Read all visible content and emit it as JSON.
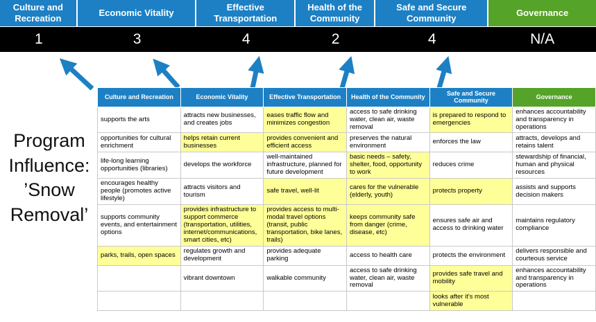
{
  "colors": {
    "blue": "#1d80c4",
    "green": "#55a329",
    "highlight": "#ffff99",
    "score_bar_bg": "#000000",
    "arrow": "#1d80c4"
  },
  "program_label": "Program\nInfluence:\n’Snow\nRemoval’",
  "scoreboard": {
    "categories": [
      {
        "label": "Culture and Recreation",
        "score": "1",
        "color_key": "blue"
      },
      {
        "label": "Economic Vitality",
        "score": "3",
        "color_key": "blue"
      },
      {
        "label": "Effective Transportation",
        "score": "4",
        "color_key": "blue"
      },
      {
        "label": "Health of the Community",
        "score": "2",
        "color_key": "blue"
      },
      {
        "label": "Safe and Secure Community",
        "score": "4",
        "color_key": "blue"
      },
      {
        "label": "Governance",
        "score": "N/A",
        "color_key": "green"
      }
    ]
  },
  "table": {
    "headers": [
      {
        "label": "Culture and Recreation",
        "color_key": "blue"
      },
      {
        "label": "Economic Vitality",
        "color_key": "blue"
      },
      {
        "label": "Effective Transportation",
        "color_key": "blue"
      },
      {
        "label": "Health of the Community",
        "color_key": "blue"
      },
      {
        "label": "Safe and Secure Community",
        "color_key": "blue"
      },
      {
        "label": "Governance",
        "color_key": "green"
      }
    ],
    "rows": [
      [
        {
          "text": "supports the arts",
          "highlight": false
        },
        {
          "text": "attracts new businesses, and creates jobs",
          "highlight": false
        },
        {
          "text": "eases traffic flow and minimizes congestion",
          "highlight": true
        },
        {
          "text": "access to safe drinking water, clean air, waste removal",
          "highlight": false
        },
        {
          "text": "is prepared to respond to emergencies",
          "highlight": true
        },
        {
          "text": "enhances accountability and transparency in operations",
          "highlight": false
        }
      ],
      [
        {
          "text": "opportunities for cultural enrichment",
          "highlight": false
        },
        {
          "text": "helps retain current businesses",
          "highlight": true
        },
        {
          "text": "provides convenient and efficient access",
          "highlight": true
        },
        {
          "text": "preserves the natural environment",
          "highlight": false
        },
        {
          "text": "enforces the law",
          "highlight": false
        },
        {
          "text": "attracts, develops and retains talent",
          "highlight": false
        }
      ],
      [
        {
          "text": "life-long learning opportunities (libraries)",
          "highlight": false
        },
        {
          "text": "develops the workforce",
          "highlight": false
        },
        {
          "text": "well-maintained infrastructure, planned for future development",
          "highlight": false
        },
        {
          "text": "basic needs – safety, shelter, food, opportunity to work",
          "highlight": true
        },
        {
          "text": "reduces crime",
          "highlight": false
        },
        {
          "text": "stewardship of financial, human and physical resources",
          "highlight": false
        }
      ],
      [
        {
          "text": "encourages healthy people (promotes active lifestyle)",
          "highlight": false
        },
        {
          "text": "attracts visitors and tourism",
          "highlight": false
        },
        {
          "text": "safe travel, well-lit",
          "highlight": true
        },
        {
          "text": "cares for the vulnerable (elderly, youth)",
          "highlight": true
        },
        {
          "text": "protects property",
          "highlight": true
        },
        {
          "text": "assists and supports decision makers",
          "highlight": false
        }
      ],
      [
        {
          "text": "supports community events, and entertainment options",
          "highlight": false
        },
        {
          "text": "provides infrastructure to support commerce (transportation, utilities, internet/communications, smart cities, etc)",
          "highlight": true
        },
        {
          "text": "provides access to multi-modal travel options (transit, public transportation, bike lanes, trails)",
          "highlight": true
        },
        {
          "text": "keeps community safe from danger (crime, disease, etc)",
          "highlight": true
        },
        {
          "text": "ensures safe air and access to drinking water",
          "highlight": false
        },
        {
          "text": "maintains regulatory compliance",
          "highlight": false
        }
      ],
      [
        {
          "text": "parks, trails, open spaces",
          "highlight": true
        },
        {
          "text": "regulates growth and development",
          "highlight": false
        },
        {
          "text": "provides adequate parking",
          "highlight": false
        },
        {
          "text": "access to health care",
          "highlight": false
        },
        {
          "text": "protects the environment",
          "highlight": false
        },
        {
          "text": "delivers responsible and courteous service",
          "highlight": false
        }
      ],
      [
        {
          "text": "",
          "highlight": false
        },
        {
          "text": "vibrant downtown",
          "highlight": false
        },
        {
          "text": "walkable community",
          "highlight": false
        },
        {
          "text": "access to safe drinking water, clean air, waste removal",
          "highlight": false
        },
        {
          "text": "provides safe travel and mobility",
          "highlight": true
        },
        {
          "text": "enhances accountability and transparency in operations",
          "highlight": false
        }
      ],
      [
        {
          "text": "",
          "highlight": false
        },
        {
          "text": "",
          "highlight": false
        },
        {
          "text": "",
          "highlight": false
        },
        {
          "text": "",
          "highlight": false
        },
        {
          "text": "looks after it's most vulnerable",
          "highlight": true
        },
        {
          "text": "",
          "highlight": false
        }
      ]
    ]
  }
}
